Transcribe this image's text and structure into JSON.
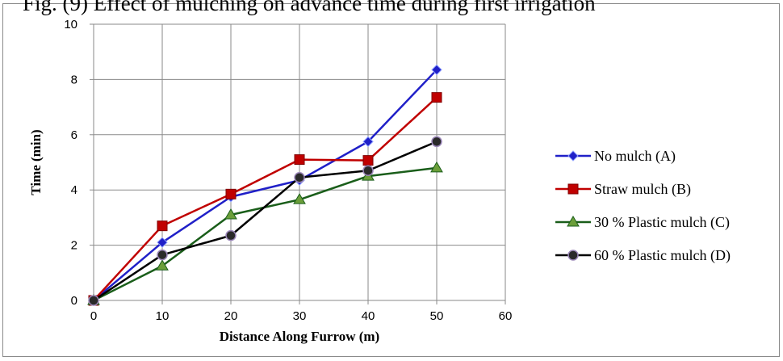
{
  "chart_data": {
    "type": "line",
    "title": "Fig. (9) Effect of mulching on advance time during first irrigation",
    "xlabel": "Distance Along Furrow (m)",
    "ylabel": "Time (min)",
    "xlim": [
      0,
      60
    ],
    "ylim": [
      0,
      10
    ],
    "xticks": [
      0,
      10,
      20,
      30,
      40,
      50,
      60
    ],
    "yticks": [
      0,
      2,
      4,
      6,
      8,
      10
    ],
    "grid": true,
    "legend_position": "right",
    "x": [
      0,
      10,
      20,
      30,
      40,
      50
    ],
    "series": [
      {
        "name": "No mulch (A)",
        "color": "#2020c8",
        "marker": "diamond",
        "values": [
          0,
          2.1,
          3.75,
          4.35,
          5.75,
          8.35
        ]
      },
      {
        "name": "Straw mulch (B)",
        "color": "#c00000",
        "marker": "square",
        "values": [
          0,
          2.7,
          3.85,
          5.1,
          5.07,
          7.35
        ]
      },
      {
        "name": "30 % Plastic mulch (C)",
        "color": "#1a5e1a",
        "marker": "triangle",
        "values": [
          0,
          1.25,
          3.1,
          3.65,
          4.5,
          4.8
        ]
      },
      {
        "name": "60 % Plastic mulch (D)",
        "color": "#000000",
        "marker": "circle",
        "values": [
          0,
          1.65,
          2.35,
          4.45,
          4.7,
          5.75
        ]
      }
    ]
  }
}
